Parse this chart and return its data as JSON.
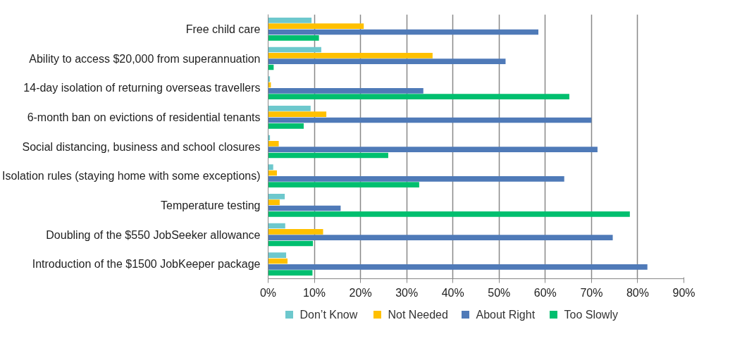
{
  "chart_data": {
    "type": "bar",
    "orientation": "horizontal",
    "categories": [
      "Free child care",
      "Ability to access $20,000 from superannuation",
      "14-day isolation of returning overseas travellers",
      "6-month ban on evictions of residential tenants",
      "Social distancing, business and school closures",
      "Isolation rules (staying home with some exceptions)",
      "Temperature testing",
      "Doubling of the $550 JobSeeker allowance",
      "Introduction of the $1500 JobKeeper package"
    ],
    "series": [
      {
        "name": "Don’t Know",
        "color": "#6dc8cd",
        "values": [
          9.4,
          11.5,
          0.4,
          9.2,
          0.4,
          1.1,
          3.6,
          3.7,
          3.9
        ]
      },
      {
        "name": "Not Needed",
        "color": "#ffc000",
        "values": [
          20.7,
          35.6,
          0.6,
          12.6,
          2.3,
          1.9,
          2.5,
          11.9,
          4.2
        ]
      },
      {
        "name": "About Right",
        "color": "#4f7ab8",
        "values": [
          58.5,
          51.4,
          33.6,
          70.0,
          71.3,
          64.1,
          15.7,
          74.6,
          82.1
        ]
      },
      {
        "name": "Too Slowly",
        "color": "#00bf6f",
        "values": [
          11.0,
          1.2,
          65.2,
          7.7,
          26.0,
          32.7,
          78.3,
          9.7,
          9.6
        ]
      }
    ],
    "xlim": [
      0,
      90
    ],
    "xticks": [
      {
        "value": 0,
        "label": "0%"
      },
      {
        "value": 10,
        "label": "10%"
      },
      {
        "value": 20,
        "label": "20%"
      },
      {
        "value": 30,
        "label": "30%"
      },
      {
        "value": 40,
        "label": "40%"
      },
      {
        "value": 50,
        "label": "50%"
      },
      {
        "value": 60,
        "label": "60%"
      },
      {
        "value": 70,
        "label": "70%"
      },
      {
        "value": 80,
        "label": "80%"
      },
      {
        "value": 90,
        "label": "90%"
      }
    ],
    "grid": "x",
    "legend": "bottom"
  }
}
